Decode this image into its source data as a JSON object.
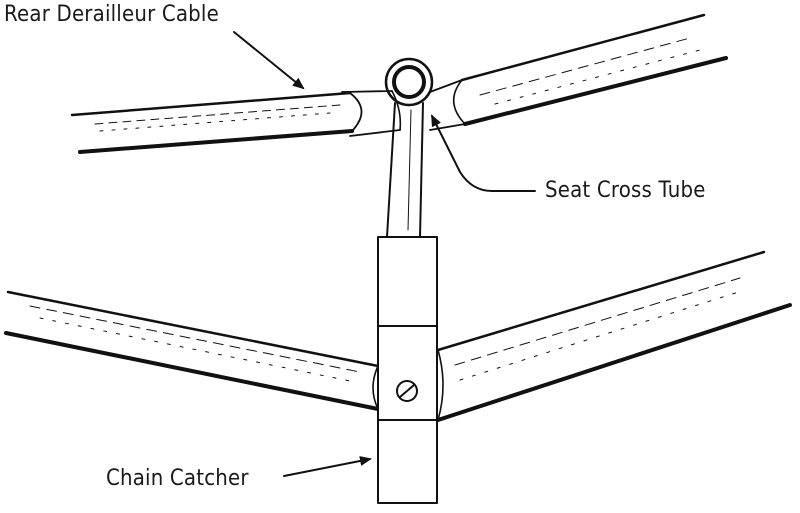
{
  "diagram": {
    "labels": {
      "rear_derailleur_cable": "Rear Derailleur Cable",
      "seat_cross_tube": "Seat Cross Tube",
      "chain_catcher": "Chain Catcher"
    }
  }
}
